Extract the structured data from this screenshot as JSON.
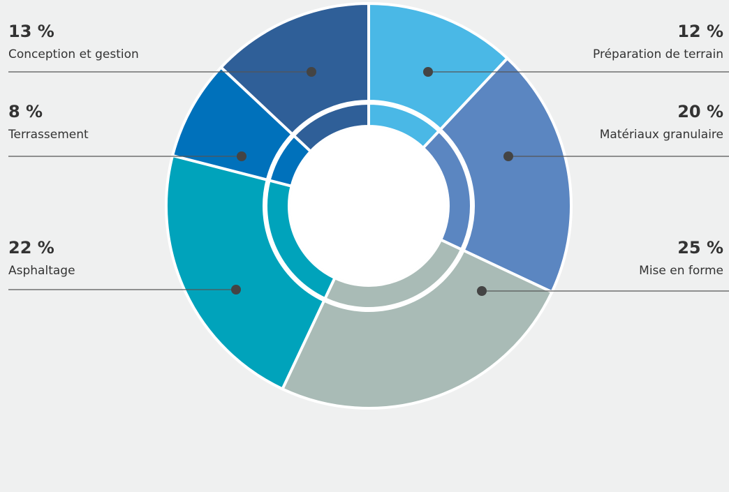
{
  "chart_data": {
    "type": "donut",
    "categories": [
      "Préparation de terrain",
      "Matériaux granulaire",
      "Mise en forme",
      "Asphaltage",
      "Terrassement",
      "Conception et gestion"
    ],
    "values": [
      12,
      20,
      25,
      22,
      8,
      13
    ],
    "value_labels": [
      "12 %",
      "20 %",
      "25 %",
      "22 %",
      "8 %",
      "13 %"
    ],
    "colors": [
      "#4ab8e6",
      "#5b86c1",
      "#a9bbb6",
      "#00a3bb",
      "#0071bb",
      "#2f5f98"
    ]
  }
}
